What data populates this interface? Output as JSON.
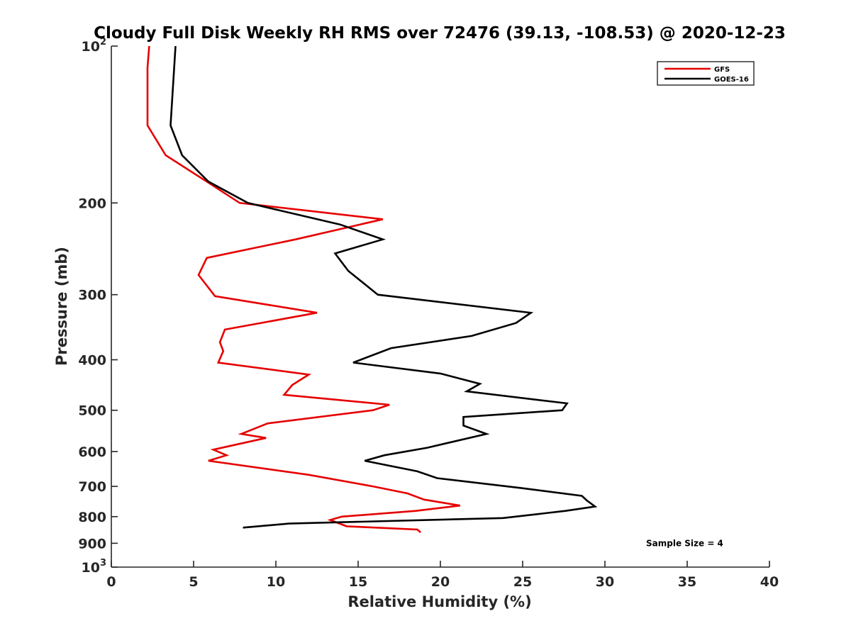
{
  "chart_data": {
    "type": "line",
    "title": "Cloudy Full Disk Weekly RH RMS over 72476 (39.13, -108.53) @ 2020-12-23",
    "xlabel": "Relative Humidity (%)",
    "ylabel": "Pressure (mb)",
    "xlim": [
      0,
      40
    ],
    "ylim": [
      100,
      1000
    ],
    "y_scale": "log",
    "y_reversed": true,
    "grid": false,
    "legend_position": "top-right",
    "x_ticks": [
      "0",
      "5",
      "10",
      "15",
      "20",
      "25",
      "30",
      "35",
      "40"
    ],
    "x_tick_values": [
      0,
      5,
      10,
      15,
      20,
      25,
      30,
      35,
      40
    ],
    "y_ticks": [
      {
        "value": 100,
        "base": "10",
        "exp": "2"
      },
      {
        "value": 200,
        "base": "200",
        "exp": ""
      },
      {
        "value": 300,
        "base": "300",
        "exp": ""
      },
      {
        "value": 400,
        "base": "400",
        "exp": ""
      },
      {
        "value": 500,
        "base": "500",
        "exp": ""
      },
      {
        "value": 600,
        "base": "600",
        "exp": ""
      },
      {
        "value": 700,
        "base": "700",
        "exp": ""
      },
      {
        "value": 800,
        "base": "800",
        "exp": ""
      },
      {
        "value": 900,
        "base": "900",
        "exp": ""
      },
      {
        "value": 1000,
        "base": "10",
        "exp": "3"
      }
    ],
    "series": [
      {
        "name": "GFS",
        "color": "#e60000",
        "points": [
          [
            2.3,
            100
          ],
          [
            2.2,
            110
          ],
          [
            2.2,
            125
          ],
          [
            2.2,
            142
          ],
          [
            3.3,
            162
          ],
          [
            5.8,
            182
          ],
          [
            7.8,
            200
          ],
          [
            16.5,
            215
          ],
          [
            11.2,
            235
          ],
          [
            5.8,
            255
          ],
          [
            5.3,
            275
          ],
          [
            6.3,
            302
          ],
          [
            12.5,
            325
          ],
          [
            6.9,
            350
          ],
          [
            6.6,
            370
          ],
          [
            6.8,
            385
          ],
          [
            6.5,
            405
          ],
          [
            12.0,
            427
          ],
          [
            11.0,
            447
          ],
          [
            10.5,
            467
          ],
          [
            16.9,
            488
          ],
          [
            15.9,
            500
          ],
          [
            9.5,
            530
          ],
          [
            7.9,
            555
          ],
          [
            9.4,
            565
          ],
          [
            6.2,
            595
          ],
          [
            7.0,
            610
          ],
          [
            5.9,
            625
          ],
          [
            12.0,
            665
          ],
          [
            15.9,
            700
          ],
          [
            18.0,
            722
          ],
          [
            19.0,
            742
          ],
          [
            21.2,
            762
          ],
          [
            18.5,
            780
          ],
          [
            14.0,
            800
          ],
          [
            13.3,
            812
          ],
          [
            14.3,
            835
          ],
          [
            16.8,
            842
          ],
          [
            18.6,
            847
          ],
          [
            18.8,
            858
          ]
        ]
      },
      {
        "name": "GOES-16",
        "color": "#000000",
        "points": [
          [
            3.9,
            100
          ],
          [
            3.6,
            142
          ],
          [
            4.3,
            162
          ],
          [
            5.9,
            182
          ],
          [
            8.3,
            200
          ],
          [
            13.9,
            220
          ],
          [
            16.5,
            235
          ],
          [
            13.6,
            250
          ],
          [
            14.4,
            270
          ],
          [
            16.2,
            300
          ],
          [
            25.5,
            325
          ],
          [
            24.6,
            340
          ],
          [
            21.9,
            360
          ],
          [
            17.0,
            380
          ],
          [
            14.7,
            405
          ],
          [
            20.0,
            425
          ],
          [
            22.4,
            445
          ],
          [
            21.6,
            460
          ],
          [
            27.7,
            485
          ],
          [
            27.4,
            500
          ],
          [
            21.4,
            515
          ],
          [
            21.4,
            535
          ],
          [
            22.8,
            555
          ],
          [
            19.2,
            590
          ],
          [
            16.6,
            610
          ],
          [
            15.4,
            625
          ],
          [
            18.6,
            655
          ],
          [
            19.8,
            675
          ],
          [
            24.9,
            705
          ],
          [
            28.6,
            730
          ],
          [
            28.9,
            745
          ],
          [
            29.4,
            765
          ],
          [
            27.6,
            780
          ],
          [
            23.8,
            805
          ],
          [
            10.8,
            825
          ],
          [
            8.0,
            840
          ]
        ]
      }
    ],
    "annotations": [
      {
        "text": "Sample Size = 4",
        "x": 32.5,
        "y": 900
      }
    ]
  }
}
